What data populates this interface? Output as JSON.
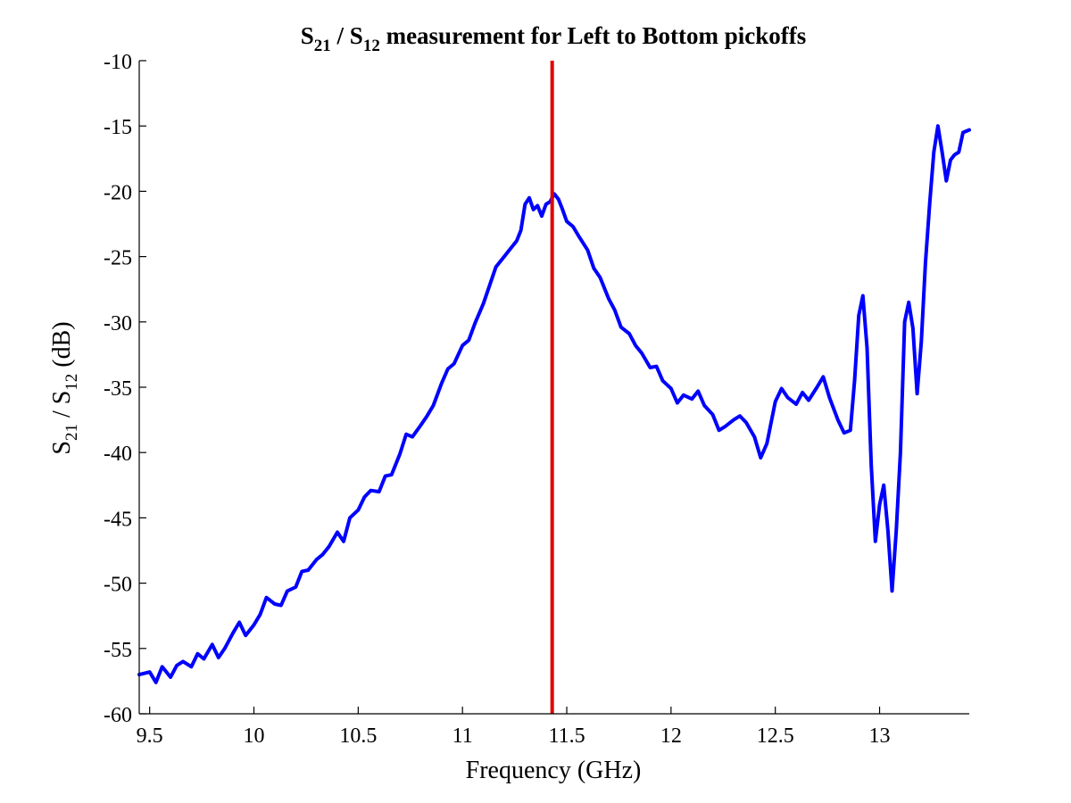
{
  "chart_data": {
    "type": "line",
    "title": {
      "s1_main": "S",
      "s1_sub": "21",
      "mid": " / ",
      "s2_main": "S",
      "s2_sub": "12",
      "rest": " measurement for Left to Bottom pickoffs"
    },
    "xlabel": "Frequency (GHz)",
    "ylabel": {
      "s1_main": "S",
      "s1_sub": "21",
      "mid": " / ",
      "s2_main": "S",
      "s2_sub": "12",
      "rest": " (dB)"
    },
    "xlim": [
      9.45,
      13.43
    ],
    "ylim": [
      -60,
      -10
    ],
    "xticks": [
      9.5,
      10,
      10.5,
      11,
      11.5,
      12,
      12.5,
      13
    ],
    "xtick_labels": [
      "9.5",
      "10",
      "10.5",
      "11",
      "11.5",
      "12",
      "12.5",
      "13"
    ],
    "yticks": [
      -10,
      -15,
      -20,
      -25,
      -30,
      -35,
      -40,
      -45,
      -50,
      -55,
      -60
    ],
    "ytick_labels": [
      "-10",
      "-15",
      "-20",
      "-25",
      "-30",
      "-35",
      "-40",
      "-45",
      "-50",
      "-55",
      "-60"
    ],
    "grid": false,
    "series": [
      {
        "color": "#0000ff",
        "x": [
          9.45,
          9.5,
          9.53,
          9.56,
          9.6,
          9.63,
          9.66,
          9.7,
          9.73,
          9.76,
          9.8,
          9.83,
          9.86,
          9.9,
          9.93,
          9.96,
          10.0,
          10.03,
          10.06,
          10.1,
          10.13,
          10.16,
          10.2,
          10.23,
          10.26,
          10.3,
          10.33,
          10.36,
          10.4,
          10.43,
          10.46,
          10.5,
          10.53,
          10.56,
          10.6,
          10.63,
          10.66,
          10.7,
          10.73,
          10.76,
          10.8,
          10.83,
          10.86,
          10.9,
          10.93,
          10.96,
          11.0,
          11.03,
          11.06,
          11.1,
          11.13,
          11.16,
          11.2,
          11.23,
          11.26,
          11.28,
          11.3,
          11.32,
          11.34,
          11.36,
          11.38,
          11.4,
          11.42,
          11.44,
          11.46,
          11.48,
          11.5,
          11.53,
          11.56,
          11.6,
          11.63,
          11.66,
          11.7,
          11.73,
          11.76,
          11.8,
          11.83,
          11.86,
          11.9,
          11.93,
          11.96,
          12.0,
          12.03,
          12.06,
          12.1,
          12.13,
          12.16,
          12.2,
          12.23,
          12.26,
          12.3,
          12.33,
          12.36,
          12.4,
          12.43,
          12.46,
          12.5,
          12.53,
          12.56,
          12.6,
          12.63,
          12.66,
          12.7,
          12.73,
          12.76,
          12.8,
          12.83,
          12.86,
          12.88,
          12.9,
          12.92,
          12.94,
          12.96,
          12.98,
          13.0,
          13.02,
          13.04,
          13.06,
          13.08,
          13.1,
          13.12,
          13.14,
          13.16,
          13.18,
          13.2,
          13.22,
          13.24,
          13.26,
          13.28,
          13.3,
          13.32,
          13.34,
          13.36,
          13.38,
          13.4,
          13.43
        ],
        "y": [
          -57.0,
          -56.8,
          -57.6,
          -56.4,
          -57.2,
          -56.3,
          -56.0,
          -56.4,
          -55.4,
          -55.8,
          -54.7,
          -55.7,
          -55.0,
          -53.8,
          -53.0,
          -54.0,
          -53.2,
          -52.4,
          -51.1,
          -51.6,
          -51.7,
          -50.6,
          -50.3,
          -49.1,
          -49.0,
          -48.2,
          -47.8,
          -47.2,
          -46.1,
          -46.8,
          -45.0,
          -44.4,
          -43.4,
          -42.9,
          -43.0,
          -41.8,
          -41.7,
          -40.1,
          -38.6,
          -38.8,
          -37.9,
          -37.2,
          -36.4,
          -34.7,
          -33.6,
          -33.2,
          -31.8,
          -31.4,
          -30.1,
          -28.6,
          -27.2,
          -25.8,
          -25.0,
          -24.4,
          -23.8,
          -23.0,
          -21.0,
          -20.5,
          -21.4,
          -21.1,
          -21.9,
          -21.0,
          -20.8,
          -20.2,
          -20.6,
          -21.4,
          -22.3,
          -22.7,
          -23.5,
          -24.5,
          -25.9,
          -26.6,
          -28.2,
          -29.1,
          -30.4,
          -30.9,
          -31.8,
          -32.4,
          -33.5,
          -33.4,
          -34.5,
          -35.1,
          -36.2,
          -35.6,
          -35.9,
          -35.3,
          -36.4,
          -37.1,
          -38.3,
          -38.0,
          -37.5,
          -37.2,
          -37.7,
          -38.8,
          -40.4,
          -39.3,
          -36.1,
          -35.1,
          -35.8,
          -36.3,
          -35.4,
          -36.0,
          -35.0,
          -34.2,
          -35.8,
          -37.5,
          -38.5,
          -38.3,
          -34.5,
          -29.5,
          -28.0,
          -32.0,
          -41.0,
          -46.8,
          -44.0,
          -42.5,
          -46.0,
          -50.6,
          -46.0,
          -40.0,
          -30.0,
          -28.5,
          -30.5,
          -35.5,
          -31.5,
          -25.5,
          -21.0,
          -17.0,
          -15.0,
          -17.0,
          -19.2,
          -17.6,
          -17.2,
          -17.0,
          -15.5,
          -15.3
        ]
      }
    ],
    "marker_line": {
      "x": 11.43,
      "color": "#e00000"
    }
  }
}
